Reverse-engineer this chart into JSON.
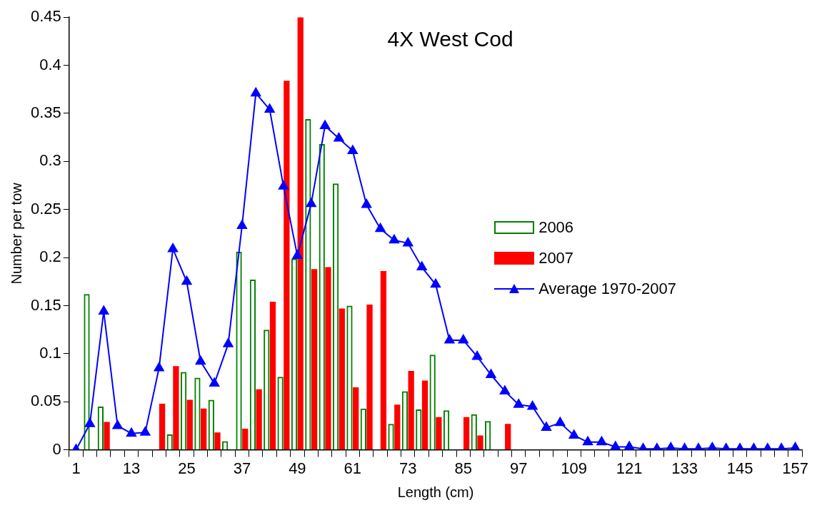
{
  "chart_data": {
    "type": "bar",
    "title": "4X West Cod",
    "xlabel": "Length (cm)",
    "ylabel": "Number per tow",
    "categories": [
      "1",
      null,
      null,
      null,
      "13",
      null,
      null,
      null,
      "25",
      null,
      null,
      null,
      "37",
      null,
      null,
      null,
      "49",
      null,
      null,
      null,
      "61",
      null,
      null,
      null,
      "73",
      null,
      null,
      null,
      "85",
      null,
      null,
      null,
      "97",
      null,
      null,
      null,
      "109",
      null,
      null,
      null,
      "121",
      null,
      null,
      null,
      "133",
      null,
      null,
      null,
      "145",
      null,
      null,
      null,
      "157"
    ],
    "series": [
      {
        "name": "2006",
        "color": "#008000",
        "values": [
          0,
          0.162,
          0.045,
          0,
          0,
          0,
          0,
          0.016,
          0.081,
          0.075,
          0.052,
          0.009,
          0.206,
          0.177,
          0.125,
          0.076,
          0.199,
          0.344,
          0.318,
          0.277,
          0.15,
          0.043,
          0,
          0.027,
          0.061,
          0.042,
          0.099,
          0.041,
          0,
          0.037,
          0.03,
          0,
          0,
          0,
          0,
          0,
          0,
          0,
          0,
          0,
          0,
          0,
          0,
          0,
          0,
          0,
          0,
          0,
          0,
          0,
          0,
          0,
          0
        ]
      },
      {
        "name": "2007",
        "color": "#ff0000",
        "values": [
          0,
          0,
          0.029,
          0,
          0,
          0,
          0.048,
          0.087,
          0.052,
          0.043,
          0.018,
          0,
          0.022,
          0.063,
          0.154,
          0.384,
          0.45,
          0.188,
          0.19,
          0.147,
          0.065,
          0.151,
          0.186,
          0.047,
          0.082,
          0.072,
          0.034,
          0,
          0.034,
          0.015,
          0,
          0.027,
          0,
          0,
          0,
          0,
          0,
          0,
          0,
          0,
          0,
          0,
          0,
          0,
          0,
          0,
          0,
          0,
          0,
          0,
          0,
          0,
          0
        ]
      },
      {
        "name": "Average 1970-2007",
        "type": "line",
        "color": "#0000ff",
        "marker": "triangle",
        "line_style": "solid",
        "values": [
          0,
          0.027,
          0.144,
          0.025,
          0.017,
          0.018,
          0.085,
          0.209,
          0.175,
          0.092,
          0.069,
          0.11,
          0.233,
          0.371,
          0.354,
          0.274,
          0.202,
          0.256,
          0.337,
          0.324,
          0.311,
          0.255,
          0.23,
          0.218,
          0.215,
          0.19,
          0.172,
          0.114,
          0.114,
          0.097,
          0.078,
          0.061,
          0.047,
          0.045,
          0.023,
          0.028,
          0.015,
          0.008,
          0.008,
          0.003,
          0.003,
          0.001,
          0.001,
          0.002,
          0.001,
          0.001,
          0.002,
          0.001,
          0.001,
          0.001,
          0.001,
          0.001,
          0.002
        ]
      }
    ],
    "ylim": [
      0,
      0.45
    ],
    "yticks": [
      0,
      0.05,
      0.1,
      0.15,
      0.2,
      0.25,
      0.3,
      0.35,
      0.4,
      0.45
    ],
    "grid": false,
    "legend": "right"
  }
}
